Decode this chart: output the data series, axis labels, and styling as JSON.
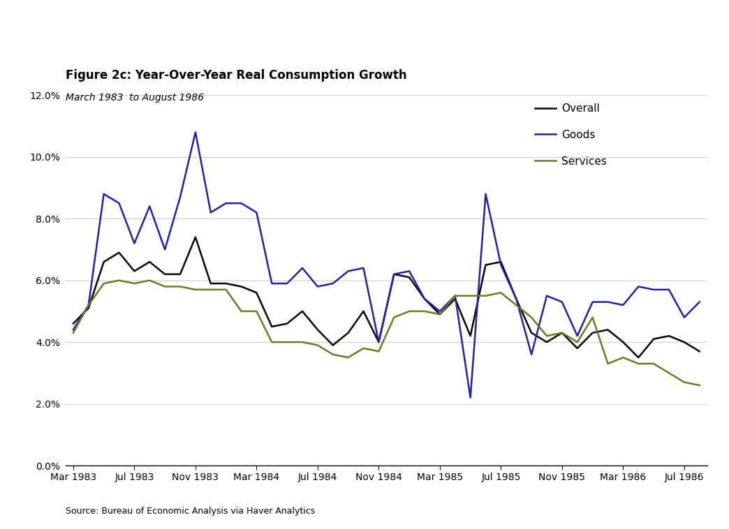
{
  "title": "Figure 2c: Year-Over-Year Real Consumption Growth",
  "subtitle": "March 1983  to August 1986",
  "source": "Source: Bureau of Economic Analysis via Haver Analytics",
  "title_fontsize": 12,
  "subtitle_fontsize": 10,
  "ylim": [
    0.0,
    0.12
  ],
  "yticks": [
    0.0,
    0.02,
    0.04,
    0.06,
    0.08,
    0.1,
    0.12
  ],
  "background_color": "#ffffff",
  "overall_color": "#000000",
  "goods_color": "#2020aa",
  "services_color": "#6b7a1e",
  "x_labels": [
    "Mar 1983",
    "Jul 1983",
    "Nov 1983",
    "Mar 1984",
    "Jul 1984",
    "Nov 1984",
    "Mar 1985",
    "Jul 1985",
    "Nov 1985",
    "Mar 1986",
    "Jul 1986"
  ],
  "overall": [
    0.046,
    0.051,
    0.066,
    0.069,
    0.063,
    0.066,
    0.062,
    0.062,
    0.074,
    0.059,
    0.059,
    0.058,
    0.056,
    0.045,
    0.046,
    0.05,
    0.044,
    0.039,
    0.043,
    0.05,
    0.04,
    0.062,
    0.061,
    0.054,
    0.049,
    0.054,
    0.042,
    0.065,
    0.066,
    0.054,
    0.043,
    0.04,
    0.043,
    0.038,
    0.043,
    0.044,
    0.04,
    0.035,
    0.041,
    0.042,
    0.04,
    0.037
  ],
  "goods": [
    0.044,
    0.052,
    0.088,
    0.085,
    0.072,
    0.084,
    0.07,
    0.087,
    0.108,
    0.082,
    0.085,
    0.085,
    0.082,
    0.059,
    0.059,
    0.064,
    0.058,
    0.059,
    0.063,
    0.064,
    0.04,
    0.062,
    0.063,
    0.054,
    0.05,
    0.055,
    0.022,
    0.088,
    0.065,
    0.054,
    0.036,
    0.055,
    0.053,
    0.042,
    0.053,
    0.053,
    0.052,
    0.058,
    0.057,
    0.057,
    0.048,
    0.053
  ],
  "services": [
    0.043,
    0.052,
    0.059,
    0.06,
    0.059,
    0.06,
    0.058,
    0.058,
    0.057,
    0.057,
    0.057,
    0.05,
    0.05,
    0.04,
    0.04,
    0.04,
    0.039,
    0.036,
    0.035,
    0.038,
    0.037,
    0.048,
    0.05,
    0.05,
    0.049,
    0.055,
    0.055,
    0.055,
    0.056,
    0.052,
    0.048,
    0.042,
    0.043,
    0.04,
    0.048,
    0.033,
    0.035,
    0.033,
    0.033,
    0.03,
    0.027,
    0.026
  ]
}
